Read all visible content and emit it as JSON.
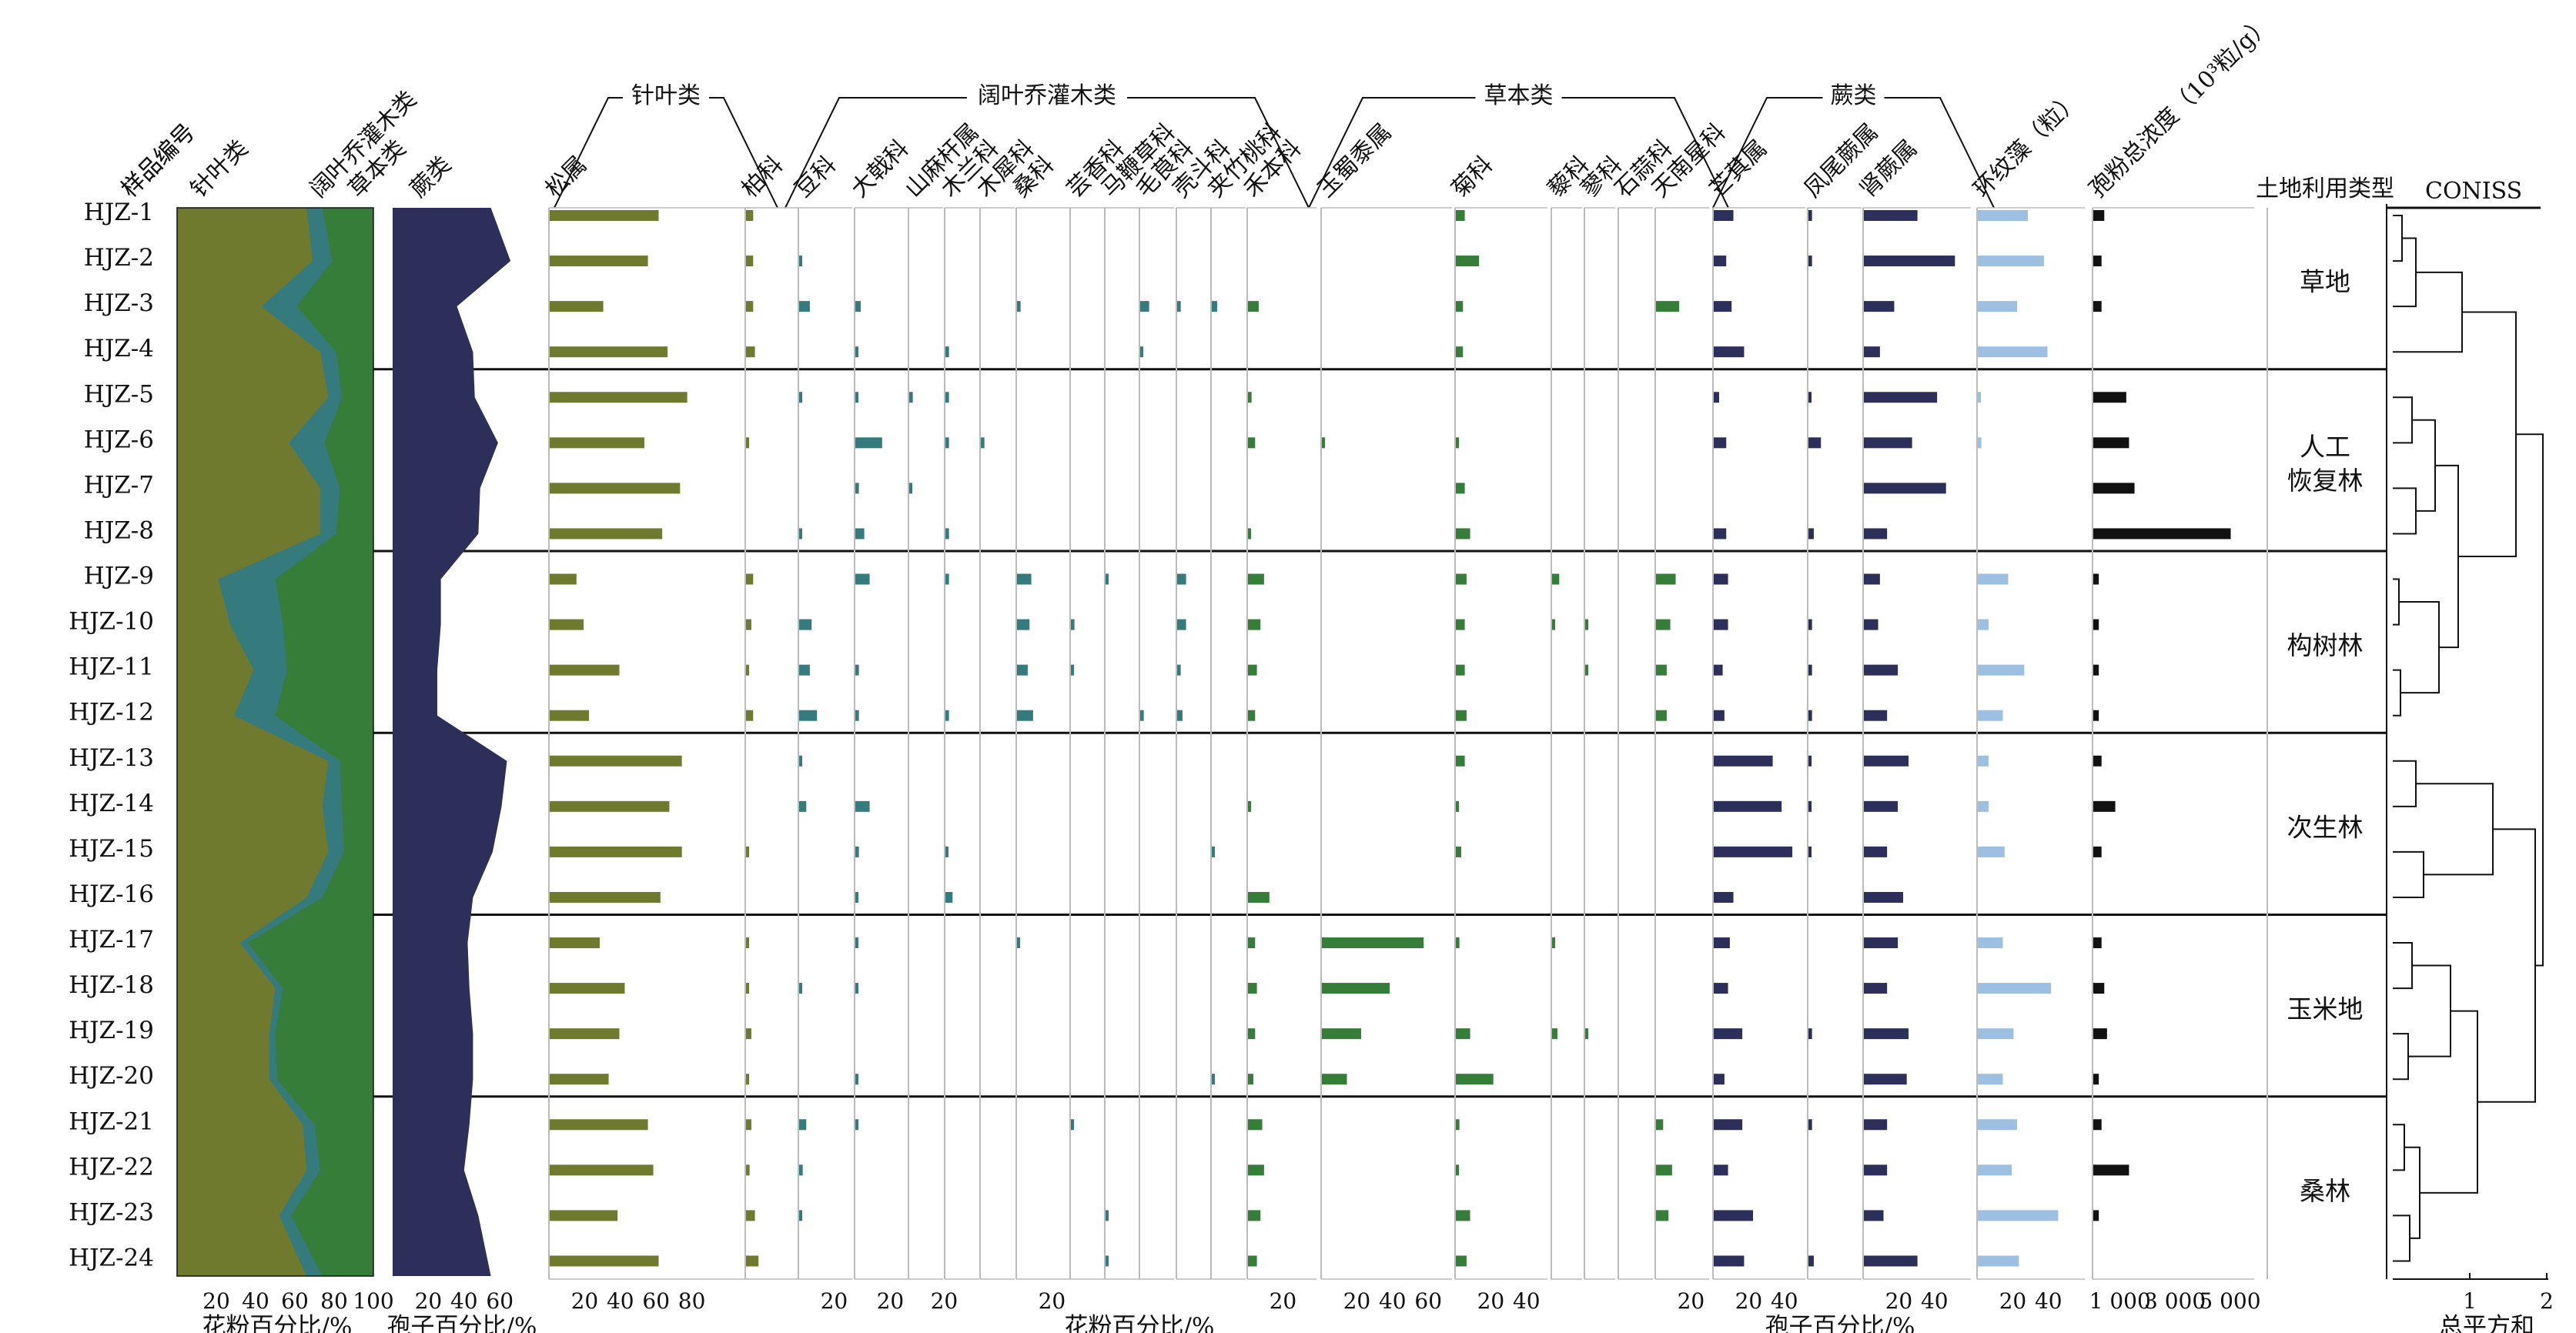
{
  "chart_data": {
    "type": "bar",
    "samples": [
      "HJZ-1",
      "HJZ-2",
      "HJZ-3",
      "HJZ-4",
      "HJZ-5",
      "HJZ-6",
      "HJZ-7",
      "HJZ-8",
      "HJZ-9",
      "HJZ-10",
      "HJZ-11",
      "HJZ-12",
      "HJZ-13",
      "HJZ-14",
      "HJZ-15",
      "HJZ-16",
      "HJZ-17",
      "HJZ-18",
      "HJZ-19",
      "HJZ-20",
      "HJZ-21",
      "HJZ-22",
      "HJZ-23",
      "HJZ-24"
    ],
    "headers": {
      "sample_id": "样品编号",
      "conifer": "针叶类",
      "broadleaf": "阔叶乔灌木类",
      "herb": "草本类",
      "fern": "蕨类",
      "land_use": "土地利用类型",
      "coniss": "CONISS"
    },
    "groups": [
      {
        "label": "针叶类"
      },
      {
        "label": "阔叶乔灌木类"
      },
      {
        "label": "草本类"
      },
      {
        "label": "蕨类"
      }
    ],
    "stacked_pollen": {
      "colors": [
        "#6f7a2f",
        "#357a7d",
        "#367d3a"
      ],
      "conifer": [
        66,
        69,
        43,
        73,
        77,
        57,
        73,
        73,
        21,
        27,
        39,
        29,
        77,
        74,
        77,
        66,
        32,
        50,
        47,
        47,
        64,
        66,
        52,
        66
      ],
      "broadleaf": [
        8,
        10,
        18,
        8,
        7,
        18,
        10,
        8,
        29,
        27,
        17,
        21,
        6,
        10,
        8,
        8,
        4,
        4,
        3,
        4,
        6,
        7,
        6,
        8
      ],
      "axis_label": "花粉百分比/%",
      "ticks": [
        "20",
        "40",
        "60",
        "80",
        "100"
      ]
    },
    "spore_area": {
      "color": "#2b2f5a",
      "values": [
        55,
        66,
        36,
        45,
        46,
        59,
        49,
        48,
        27,
        27,
        25,
        25,
        64,
        61,
        56,
        45,
        42,
        43,
        45,
        45,
        43,
        40,
        48,
        55
      ],
      "axis_label": "孢子百分比/%",
      "ticks": [
        "20",
        "40",
        "60"
      ]
    },
    "taxa": [
      {
        "name": "松属",
        "group": "conifer",
        "color": "#6f7a2f",
        "ticks": [
          "20",
          "40",
          "60",
          "80"
        ],
        "values": [
          61,
          55,
          30,
          66,
          77,
          53,
          73,
          63,
          15,
          19,
          39,
          22,
          74,
          67,
          74,
          62,
          28,
          42,
          39,
          33,
          55,
          58,
          38,
          61
        ]
      },
      {
        "name": "柏科",
        "group": "conifer",
        "color": "#6f7a2f",
        "ticks": [],
        "values": [
          4,
          4,
          4,
          5,
          0,
          1,
          0,
          0,
          4,
          3,
          1,
          4,
          0,
          0,
          1,
          0,
          1,
          1,
          3,
          1,
          3,
          2,
          5,
          7
        ]
      },
      {
        "name": "豆科",
        "group": "broadleaf",
        "color": "#357a7d",
        "ticks": [
          "20"
        ],
        "values": [
          0,
          1,
          6,
          0,
          1,
          0,
          0,
          1,
          0,
          7,
          6,
          10,
          1,
          4,
          0,
          0,
          0,
          1,
          0,
          0,
          4,
          2,
          1,
          0
        ]
      },
      {
        "name": "大戟科",
        "group": "broadleaf",
        "color": "#357a7d",
        "ticks": [
          "20"
        ],
        "values": [
          0,
          0,
          3,
          1,
          1,
          15,
          2,
          5,
          8,
          0,
          2,
          2,
          0,
          8,
          2,
          1,
          1,
          1,
          0,
          1,
          1,
          0,
          0,
          0
        ]
      },
      {
        "name": "山麻杆属",
        "group": "broadleaf",
        "color": "#357a7d",
        "ticks": [
          "20"
        ],
        "values": [
          0,
          0,
          0,
          0,
          2,
          0,
          1,
          0,
          0,
          0,
          0,
          0,
          0,
          0,
          0,
          0,
          0,
          0,
          0,
          0,
          0,
          0,
          0,
          0
        ]
      },
      {
        "name": "木兰科",
        "group": "broadleaf",
        "color": "#357a7d",
        "ticks": [],
        "values": [
          0,
          0,
          0,
          2,
          2,
          2,
          0,
          2,
          2,
          0,
          0,
          2,
          0,
          0,
          1,
          4,
          0,
          0,
          0,
          0,
          0,
          0,
          0,
          0
        ]
      },
      {
        "name": "木犀科",
        "group": "broadleaf",
        "color": "#357a7d",
        "ticks": [],
        "values": [
          0,
          0,
          0,
          0,
          0,
          2,
          0,
          0,
          0,
          0,
          0,
          0,
          0,
          0,
          0,
          0,
          0,
          0,
          0,
          0,
          0,
          0,
          0,
          0
        ]
      },
      {
        "name": "桑科",
        "group": "broadleaf",
        "color": "#357a7d",
        "ticks": [
          "20"
        ],
        "values": [
          0,
          0,
          2,
          0,
          0,
          0,
          0,
          0,
          8,
          7,
          6,
          9,
          0,
          0,
          0,
          0,
          1,
          0,
          0,
          0,
          0,
          0,
          0,
          0
        ]
      },
      {
        "name": "芸香科",
        "group": "broadleaf",
        "color": "#357a7d",
        "ticks": [],
        "values": [
          0,
          0,
          0,
          0,
          0,
          0,
          0,
          0,
          0,
          2,
          1,
          0,
          0,
          0,
          0,
          0,
          0,
          0,
          0,
          0,
          1,
          0,
          0,
          0
        ]
      },
      {
        "name": "马鞭草科",
        "group": "broadleaf",
        "color": "#357a7d",
        "ticks": [],
        "values": [
          0,
          0,
          0,
          0,
          0,
          0,
          0,
          0,
          1,
          0,
          0,
          0,
          0,
          0,
          0,
          0,
          0,
          0,
          0,
          0,
          0,
          0,
          1,
          1
        ]
      },
      {
        "name": "毛茛科",
        "group": "broadleaf",
        "color": "#357a7d",
        "ticks": [],
        "values": [
          0,
          0,
          5,
          1,
          0,
          0,
          0,
          0,
          0,
          0,
          0,
          2,
          0,
          0,
          0,
          0,
          0,
          0,
          0,
          0,
          0,
          0,
          0,
          0
        ]
      },
      {
        "name": "壳斗科",
        "group": "broadleaf",
        "color": "#357a7d",
        "ticks": [],
        "values": [
          0,
          0,
          2,
          0,
          0,
          0,
          0,
          0,
          5,
          5,
          2,
          3,
          0,
          0,
          0,
          0,
          0,
          0,
          0,
          0,
          0,
          0,
          0,
          0
        ]
      },
      {
        "name": "夹竹桃科",
        "group": "broadleaf",
        "color": "#357a7d",
        "ticks": [],
        "values": [
          0,
          0,
          3,
          0,
          0,
          0,
          0,
          0,
          0,
          0,
          0,
          0,
          0,
          0,
          1,
          0,
          0,
          0,
          0,
          1,
          0,
          0,
          0,
          0
        ]
      },
      {
        "name": "禾本科",
        "group": "herb",
        "color": "#367d3a",
        "ticks": [
          "20"
        ],
        "values": [
          0,
          0,
          6,
          0,
          2,
          4,
          0,
          1,
          9,
          7,
          5,
          4,
          0,
          1,
          0,
          12,
          4,
          5,
          4,
          3,
          8,
          9,
          7,
          5
        ]
      },
      {
        "name": "玉蜀黍属",
        "group": "herb",
        "color": "#367d3a",
        "ticks": [
          "20",
          "40",
          "60"
        ],
        "values": [
          0,
          0,
          0,
          0,
          0,
          1,
          0,
          0,
          0,
          0,
          0,
          0,
          0,
          0,
          0,
          0,
          57,
          38,
          22,
          14,
          0,
          0,
          0,
          0
        ]
      },
      {
        "name": "菊科",
        "group": "herb",
        "color": "#367d3a",
        "ticks": [
          "20",
          "40"
        ],
        "values": [
          5,
          13,
          4,
          4,
          0,
          1,
          5,
          8,
          6,
          5,
          5,
          6,
          5,
          1,
          3,
          0,
          2,
          0,
          8,
          21,
          2,
          1,
          8,
          6
        ]
      },
      {
        "name": "藜科",
        "group": "herb",
        "color": "#367d3a",
        "ticks": [],
        "values": [
          0,
          0,
          0,
          0,
          0,
          0,
          0,
          0,
          4,
          1,
          0,
          0,
          0,
          0,
          0,
          0,
          1,
          0,
          3,
          0,
          0,
          0,
          0,
          0
        ]
      },
      {
        "name": "蓼科",
        "group": "herb",
        "color": "#367d3a",
        "ticks": [],
        "values": [
          0,
          0,
          0,
          0,
          0,
          0,
          0,
          0,
          0,
          1,
          1,
          0,
          0,
          0,
          0,
          0,
          0,
          0,
          1,
          0,
          0,
          0,
          0,
          0
        ]
      },
      {
        "name": "石蒜科",
        "group": "herb",
        "color": "#367d3a",
        "ticks": [],
        "values": [
          0,
          0,
          0,
          0,
          0,
          0,
          0,
          0,
          0,
          0,
          0,
          0,
          0,
          0,
          0,
          0,
          0,
          0,
          0,
          0,
          0,
          0,
          0,
          0
        ]
      },
      {
        "name": "天南星科",
        "group": "herb",
        "color": "#367d3a",
        "ticks": [
          "20"
        ],
        "values": [
          0,
          0,
          13,
          0,
          0,
          0,
          0,
          0,
          11,
          8,
          6,
          6,
          0,
          0,
          0,
          0,
          0,
          0,
          0,
          0,
          4,
          9,
          7,
          0
        ]
      },
      {
        "name": "芒萁属",
        "group": "fern",
        "color": "#2b2f5a",
        "ticks": [
          "20",
          "40"
        ],
        "values": [
          11,
          7,
          10,
          17,
          3,
          7,
          0,
          7,
          8,
          8,
          5,
          6,
          33,
          38,
          44,
          11,
          9,
          8,
          16,
          6,
          16,
          8,
          22,
          17
        ]
      },
      {
        "name": "凤尾蕨属",
        "group": "fern",
        "color": "#2b2f5a",
        "ticks": [],
        "values": [
          2,
          2,
          0,
          0,
          1,
          7,
          0,
          3,
          0,
          2,
          2,
          2,
          1,
          1,
          1,
          0,
          0,
          0,
          2,
          0,
          2,
          0,
          0,
          3
        ]
      },
      {
        "name": "肾蕨属",
        "group": "fern",
        "color": "#2b2f5a",
        "ticks": [
          "20",
          "40"
        ],
        "values": [
          30,
          51,
          17,
          9,
          41,
          27,
          46,
          13,
          9,
          8,
          19,
          13,
          25,
          19,
          13,
          22,
          19,
          13,
          25,
          24,
          13,
          13,
          11,
          30
        ]
      },
      {
        "name": "环纹藻（粒）",
        "group": "other",
        "color": "#9dbfe2",
        "ticks": [
          "20",
          "40"
        ],
        "values": [
          28,
          37,
          22,
          39,
          1,
          2,
          0,
          0,
          17,
          6,
          26,
          14,
          6,
          6,
          15,
          0,
          14,
          41,
          20,
          14,
          22,
          19,
          45,
          23
        ]
      },
      {
        "name": "孢粉总浓度（10³粒/g）",
        "group": "other",
        "color": "#111111",
        "ticks": [
          "1 000",
          "3 000",
          "5 000"
        ],
        "values": [
          400,
          300,
          300,
          0,
          1200,
          1300,
          1500,
          5000,
          200,
          200,
          200,
          200,
          300,
          800,
          300,
          0,
          300,
          400,
          500,
          200,
          300,
          1300,
          200,
          0
        ]
      }
    ],
    "land_use_zones": [
      {
        "label": "草地",
        "from": 1,
        "to": 4
      },
      {
        "label": "人工\n恢复林",
        "from": 5,
        "to": 8
      },
      {
        "label": "构树林",
        "from": 9,
        "to": 12
      },
      {
        "label": "次生林",
        "from": 13,
        "to": 16
      },
      {
        "label": "玉米地",
        "from": 17,
        "to": 20
      },
      {
        "label": "桑林",
        "from": 21,
        "to": 24
      }
    ],
    "coniss": {
      "ticks": [
        "1",
        "2"
      ],
      "axis_label": "总平方和"
    },
    "axis_labels": {
      "pollen_pct": "花粉百分比/%",
      "spore_pct": "孢子百分比/%",
      "pollen_pct_center": "花粉百分比/%",
      "spore_pct_center": "孢子百分比/%"
    }
  }
}
